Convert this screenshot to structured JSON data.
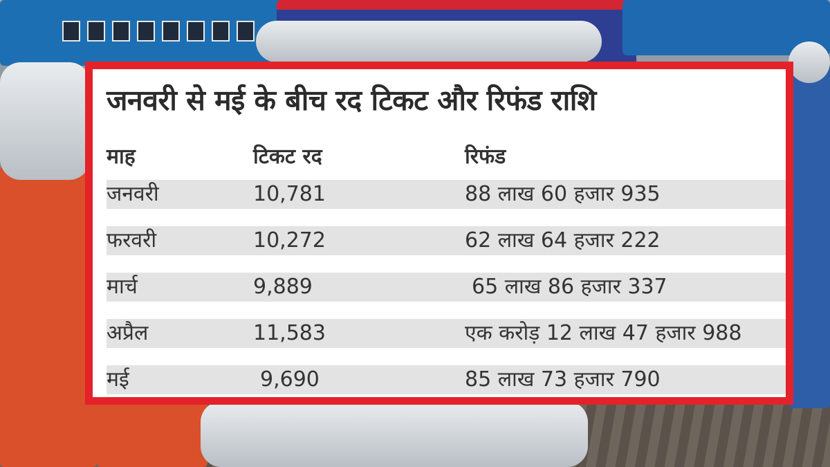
{
  "title": "जनवरी से मई के बीच रद टिकट और रिफंड राशि",
  "table": {
    "headers": [
      "माह",
      "टिकट रद",
      "रिफंड"
    ],
    "rows": [
      {
        "month": "जनवरी",
        "tickets": "10,781",
        "refund": "88 लाख 60 हजार 935"
      },
      {
        "month": "फरवरी",
        "tickets": "10,272",
        "refund": "62 लाख 64 हजार 222"
      },
      {
        "month": "मार्च",
        "tickets": "9,889",
        "refund": "65 लाख 86 हजार 337"
      },
      {
        "month": "अप्रैल",
        "tickets": "11,583",
        "refund": "एक करोड़ 12 लाख 47 हजार 988"
      },
      {
        "month": "मई",
        "tickets": "9,690",
        "refund": "85 लाख 73 हजार 790"
      }
    ]
  },
  "colors": {
    "frame": "#e4222a",
    "row_band": "#e3e3e3",
    "text": "#333333"
  }
}
